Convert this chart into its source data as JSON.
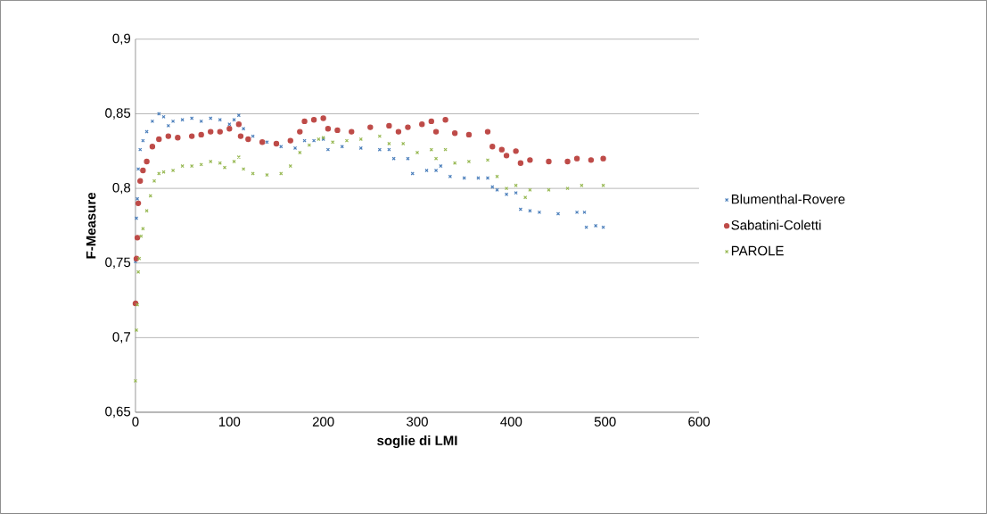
{
  "chart_data": {
    "type": "scatter",
    "xlabel": "soglie di LMI",
    "ylabel": "F-Measure",
    "xlim": [
      0,
      600
    ],
    "xticks": [
      0,
      100,
      200,
      300,
      400,
      500,
      600
    ],
    "ylim": [
      0.65,
      0.9
    ],
    "yticks": [
      {
        "value": 0.65,
        "label": "0,65"
      },
      {
        "value": 0.7,
        "label": "0,7"
      },
      {
        "value": 0.75,
        "label": "0,75"
      },
      {
        "value": 0.8,
        "label": "0,8"
      },
      {
        "value": 0.85,
        "label": "0,85"
      },
      {
        "value": 0.9,
        "label": "0,9"
      }
    ],
    "grid": "y",
    "legend": "right",
    "series": [
      {
        "name": "Blumenthal-Rovere",
        "color": "#4a7ebb",
        "marker": "cross",
        "x": [
          0,
          1,
          2,
          3,
          5,
          8,
          12,
          18,
          25,
          30,
          35,
          40,
          50,
          60,
          70,
          80,
          90,
          100,
          105,
          110,
          115,
          125,
          140,
          155,
          170,
          180,
          190,
          200,
          205,
          220,
          240,
          260,
          270,
          275,
          290,
          295,
          310,
          320,
          325,
          335,
          350,
          365,
          375,
          380,
          385,
          395,
          405,
          410,
          420,
          430,
          450,
          470,
          478,
          480,
          490,
          498
        ],
        "values": [
          0.751,
          0.78,
          0.793,
          0.813,
          0.826,
          0.832,
          0.838,
          0.845,
          0.85,
          0.848,
          0.842,
          0.845,
          0.846,
          0.847,
          0.845,
          0.847,
          0.846,
          0.843,
          0.846,
          0.849,
          0.84,
          0.835,
          0.831,
          0.828,
          0.827,
          0.832,
          0.832,
          0.833,
          0.826,
          0.828,
          0.827,
          0.826,
          0.826,
          0.82,
          0.82,
          0.81,
          0.812,
          0.812,
          0.815,
          0.808,
          0.807,
          0.807,
          0.807,
          0.801,
          0.799,
          0.796,
          0.797,
          0.786,
          0.785,
          0.784,
          0.783,
          0.784,
          0.784,
          0.774,
          0.775,
          0.774
        ]
      },
      {
        "name": "Sabatini-Coletti",
        "color": "#be4b48",
        "marker": "circle",
        "x": [
          0,
          1,
          2,
          3,
          5,
          8,
          12,
          18,
          25,
          35,
          45,
          60,
          70,
          80,
          90,
          100,
          110,
          112,
          120,
          135,
          150,
          165,
          175,
          180,
          190,
          200,
          205,
          215,
          230,
          250,
          270,
          280,
          290,
          305,
          315,
          320,
          330,
          340,
          355,
          375,
          380,
          390,
          395,
          405,
          410,
          420,
          440,
          460,
          470,
          485,
          498
        ],
        "values": [
          0.723,
          0.753,
          0.767,
          0.79,
          0.805,
          0.812,
          0.818,
          0.828,
          0.833,
          0.835,
          0.834,
          0.835,
          0.836,
          0.838,
          0.838,
          0.84,
          0.843,
          0.835,
          0.833,
          0.831,
          0.83,
          0.832,
          0.838,
          0.845,
          0.846,
          0.847,
          0.84,
          0.839,
          0.838,
          0.841,
          0.842,
          0.838,
          0.841,
          0.843,
          0.845,
          0.838,
          0.846,
          0.837,
          0.836,
          0.838,
          0.828,
          0.826,
          0.822,
          0.825,
          0.817,
          0.819,
          0.818,
          0.818,
          0.82,
          0.819,
          0.82
        ]
      },
      {
        "name": "PAROLE",
        "color": "#98b954",
        "marker": "cross",
        "x": [
          0,
          1,
          2,
          3,
          4,
          6,
          8,
          12,
          16,
          20,
          25,
          30,
          40,
          50,
          60,
          70,
          80,
          90,
          95,
          105,
          110,
          115,
          125,
          140,
          155,
          165,
          175,
          185,
          195,
          200,
          210,
          225,
          240,
          260,
          270,
          285,
          300,
          315,
          320,
          330,
          340,
          355,
          375,
          385,
          395,
          405,
          415,
          420,
          440,
          460,
          475,
          498
        ],
        "values": [
          0.671,
          0.705,
          0.722,
          0.744,
          0.753,
          0.768,
          0.773,
          0.785,
          0.795,
          0.805,
          0.81,
          0.811,
          0.812,
          0.815,
          0.815,
          0.816,
          0.818,
          0.817,
          0.814,
          0.818,
          0.821,
          0.813,
          0.81,
          0.809,
          0.81,
          0.815,
          0.824,
          0.829,
          0.833,
          0.834,
          0.831,
          0.832,
          0.833,
          0.835,
          0.83,
          0.83,
          0.824,
          0.826,
          0.82,
          0.826,
          0.817,
          0.818,
          0.819,
          0.808,
          0.8,
          0.802,
          0.794,
          0.799,
          0.799,
          0.8,
          0.802,
          0.802
        ]
      }
    ]
  }
}
